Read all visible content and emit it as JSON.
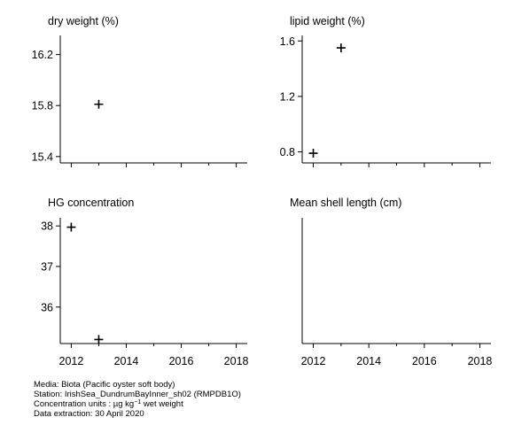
{
  "chart_data": [
    {
      "type": "scatter",
      "title": "dry weight (%)",
      "xlim": [
        2011.6,
        2018.4
      ],
      "ylim": [
        15.35,
        16.35
      ],
      "xticks": [
        2012,
        2014,
        2016,
        2018
      ],
      "yticks": [
        15.4,
        15.8,
        16.2
      ],
      "ytick_labels": [
        "15.4",
        "15.8",
        "16.2"
      ],
      "show_xtick_labels": false,
      "points": [
        {
          "x": 2013,
          "y": 15.81
        }
      ]
    },
    {
      "type": "scatter",
      "title": "lipid weight (%)",
      "xlim": [
        2011.6,
        2018.4
      ],
      "ylim": [
        0.72,
        1.64
      ],
      "xticks": [
        2012,
        2014,
        2016,
        2018
      ],
      "yticks": [
        0.8,
        1.2,
        1.6
      ],
      "ytick_labels": [
        "0.8",
        "1.2",
        "1.6"
      ],
      "show_xtick_labels": false,
      "points": [
        {
          "x": 2012,
          "y": 0.79
        },
        {
          "x": 2013,
          "y": 1.55
        }
      ]
    },
    {
      "type": "scatter",
      "title": "HG concentration",
      "xlim": [
        2011.6,
        2018.4
      ],
      "ylim": [
        35.1,
        38.2
      ],
      "xticks": [
        2012,
        2014,
        2016,
        2018
      ],
      "xtick_labels": [
        "2012",
        "2014",
        "2016",
        "2018"
      ],
      "yticks": [
        36,
        37,
        38
      ],
      "ytick_labels": [
        "36",
        "37",
        "38"
      ],
      "show_xtick_labels": true,
      "points": [
        {
          "x": 2012,
          "y": 37.97
        },
        {
          "x": 2013,
          "y": 35.2
        }
      ]
    },
    {
      "type": "scatter",
      "title": "Mean shell length (cm)",
      "xlim": [
        2011.6,
        2018.4
      ],
      "ylim": [
        0,
        1
      ],
      "xticks": [
        2012,
        2014,
        2016,
        2018
      ],
      "xtick_labels": [
        "2012",
        "2014",
        "2016",
        "2018"
      ],
      "yticks": [],
      "ytick_labels": [],
      "show_xtick_labels": true,
      "points": []
    }
  ],
  "footer": {
    "media": "Media: Biota (Pacific oyster soft body)",
    "station": "Station: IrishSea_DundrumBayInner_sh02 (RMPDB1O)",
    "units_prefix": "Concentration units :  µg kg",
    "units_sup": "−1",
    "units_suffix": " wet weight",
    "extraction": "Data extraction: 30 April 2020"
  }
}
